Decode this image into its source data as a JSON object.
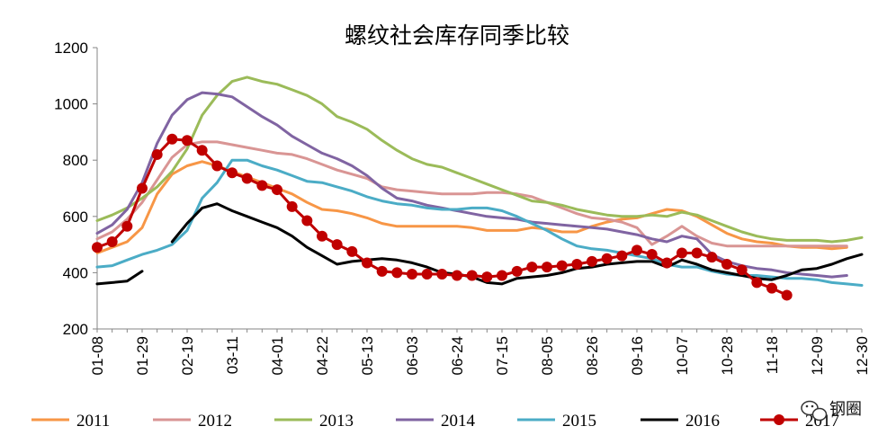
{
  "chart_data": {
    "type": "line",
    "title": "螺纹社会库存同季比较",
    "xlabel": "",
    "ylabel": "",
    "ylim": [
      200,
      1200
    ],
    "yticks": [
      200,
      400,
      600,
      800,
      1000,
      1200
    ],
    "grid": false,
    "legend_position": "bottom",
    "x": [
      "01-08",
      "01-15",
      "01-22",
      "01-29",
      "02-05",
      "02-12",
      "02-19",
      "02-26",
      "03-04",
      "03-11",
      "03-18",
      "03-25",
      "04-01",
      "04-08",
      "04-15",
      "04-22",
      "04-29",
      "05-06",
      "05-13",
      "05-20",
      "05-27",
      "06-03",
      "06-10",
      "06-17",
      "06-24",
      "07-01",
      "07-08",
      "07-15",
      "07-22",
      "07-29",
      "08-05",
      "08-12",
      "08-19",
      "08-26",
      "09-02",
      "09-09",
      "09-16",
      "09-23",
      "09-30",
      "10-07",
      "10-14",
      "10-21",
      "10-28",
      "11-04",
      "11-11",
      "11-18",
      "11-25",
      "12-02",
      "12-09",
      "12-16",
      "12-23",
      "12-30"
    ],
    "xtick_labels": [
      "01-08",
      "01-29",
      "02-19",
      "03-11",
      "04-01",
      "04-22",
      "05-13",
      "06-03",
      "06-24",
      "07-15",
      "08-05",
      "08-26",
      "09-16",
      "10-07",
      "10-28",
      "11-18",
      "12-09",
      "12-30"
    ],
    "series": [
      {
        "name": "2011",
        "color": "#F79646",
        "values": [
          470,
          490,
          510,
          560,
          680,
          750,
          780,
          795,
          780,
          760,
          740,
          720,
          700,
          680,
          650,
          625,
          620,
          610,
          595,
          575,
          565,
          565,
          565,
          565,
          565,
          560,
          550,
          550,
          550,
          560,
          555,
          545,
          545,
          565,
          580,
          590,
          595,
          610,
          625,
          620,
          600,
          570,
          540,
          520,
          510,
          505,
          495,
          490,
          490,
          485,
          490,
          null
        ]
      },
      {
        "name": "2012",
        "color": "#D99594",
        "values": [
          520,
          545,
          590,
          650,
          730,
          810,
          855,
          865,
          865,
          855,
          845,
          835,
          825,
          820,
          805,
          785,
          765,
          750,
          735,
          705,
          695,
          690,
          685,
          680,
          680,
          680,
          685,
          685,
          680,
          670,
          650,
          630,
          610,
          595,
          590,
          580,
          560,
          500,
          530,
          565,
          530,
          505,
          495,
          495,
          495,
          495,
          495,
          495,
          495,
          495,
          495,
          null
        ]
      },
      {
        "name": "2013",
        "color": "#9BBB59",
        "values": [
          585,
          605,
          630,
          665,
          705,
          760,
          840,
          960,
          1030,
          1080,
          1095,
          1080,
          1070,
          1050,
          1030,
          1000,
          955,
          935,
          910,
          870,
          835,
          805,
          785,
          775,
          755,
          735,
          715,
          695,
          675,
          655,
          650,
          640,
          625,
          615,
          605,
          600,
          600,
          605,
          600,
          615,
          605,
          585,
          565,
          545,
          530,
          520,
          515,
          515,
          515,
          510,
          515,
          525
        ]
      },
      {
        "name": "2014",
        "color": "#8064A2",
        "values": [
          540,
          570,
          625,
          720,
          860,
          960,
          1015,
          1040,
          1035,
          1025,
          990,
          955,
          925,
          885,
          855,
          825,
          805,
          780,
          745,
          700,
          665,
          655,
          640,
          630,
          620,
          610,
          600,
          595,
          590,
          580,
          575,
          570,
          565,
          560,
          555,
          545,
          535,
          520,
          510,
          530,
          520,
          465,
          440,
          425,
          415,
          410,
          400,
          395,
          390,
          385,
          390,
          null
        ]
      },
      {
        "name": "2015",
        "color": "#4BACC6",
        "values": [
          420,
          425,
          445,
          465,
          480,
          500,
          550,
          665,
          720,
          800,
          800,
          780,
          765,
          745,
          725,
          720,
          705,
          690,
          670,
          655,
          645,
          640,
          630,
          625,
          625,
          630,
          630,
          620,
          600,
          575,
          550,
          520,
          495,
          485,
          480,
          470,
          460,
          450,
          430,
          420,
          420,
          405,
          395,
          390,
          390,
          385,
          380,
          380,
          375,
          365,
          360,
          355
        ]
      },
      {
        "name": "2016",
        "color": "#000000",
        "values": [
          360,
          365,
          370,
          405,
          null,
          510,
          575,
          630,
          645,
          620,
          600,
          580,
          560,
          530,
          490,
          460,
          430,
          440,
          445,
          450,
          445,
          435,
          420,
          400,
          395,
          385,
          365,
          360,
          380,
          385,
          390,
          400,
          415,
          420,
          430,
          435,
          440,
          440,
          420,
          445,
          430,
          410,
          400,
          390,
          380,
          375,
          390,
          410,
          415,
          430,
          450,
          465
        ]
      },
      {
        "name": "2017",
        "color": "#C00000",
        "marker": "circle",
        "values": [
          490,
          510,
          565,
          700,
          820,
          875,
          870,
          835,
          780,
          755,
          735,
          710,
          695,
          635,
          585,
          530,
          500,
          475,
          435,
          405,
          400,
          395,
          395,
          395,
          390,
          390,
          385,
          390,
          405,
          420,
          420,
          425,
          430,
          440,
          450,
          460,
          480,
          465,
          435,
          470,
          470,
          455,
          430,
          410,
          365,
          345,
          320,
          null,
          null,
          null,
          null,
          null
        ]
      }
    ]
  },
  "watermark": {
    "icon": "wechat-icon",
    "text": "钢圈"
  }
}
